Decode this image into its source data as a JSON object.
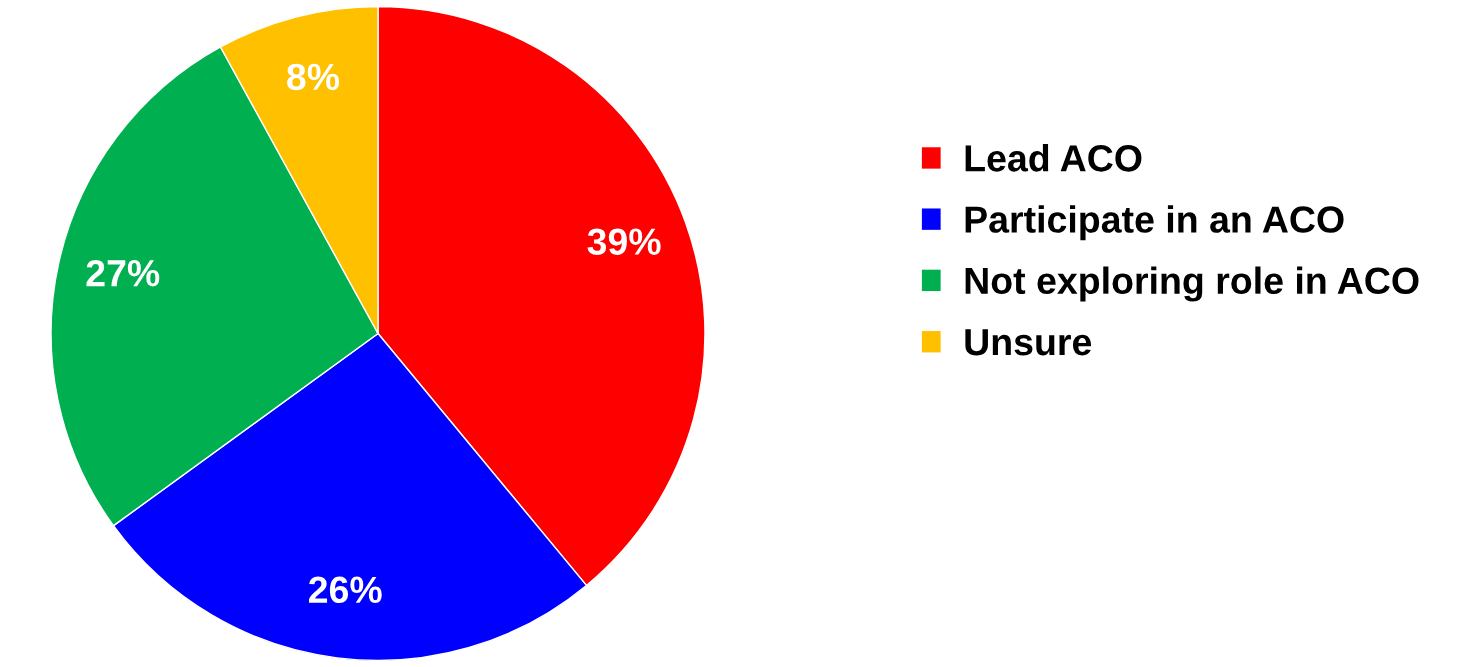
{
  "chart_data": {
    "type": "pie",
    "categories": [
      "Lead ACO",
      "Participate in an ACO",
      "Not exploring role in ACO",
      "Unsure"
    ],
    "values": [
      39,
      26,
      27,
      8
    ],
    "colors": [
      "#ff0000",
      "#0000ff",
      "#00b050",
      "#ffc000"
    ],
    "value_labels": [
      "39%",
      "26%",
      "27%",
      "8%"
    ],
    "legend": "right"
  }
}
